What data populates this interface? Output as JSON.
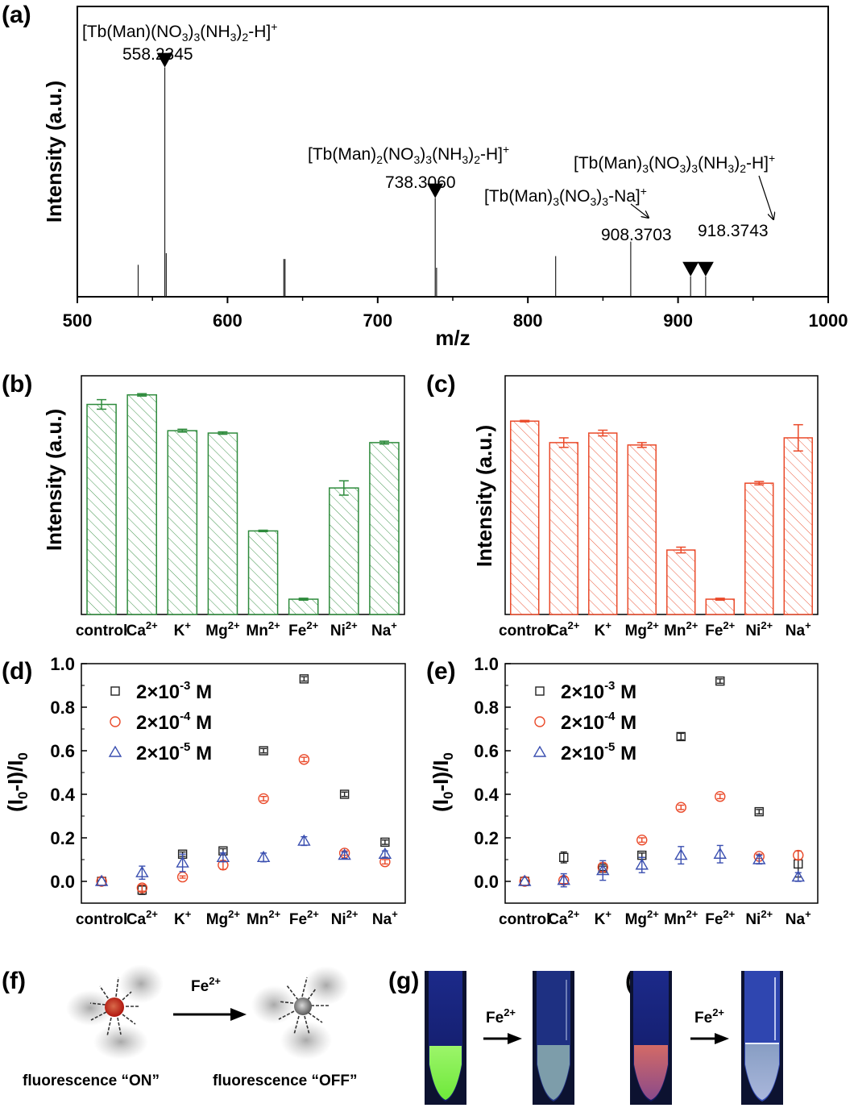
{
  "panels": {
    "a": "(a)",
    "b": "(b)",
    "c": "(c)",
    "d": "(d)",
    "e": "(e)",
    "f": "(f)",
    "g": "(g)",
    "h": "(h)"
  },
  "chart_data": [
    {
      "id": "a",
      "type": "bar",
      "subtype": "mass-spectrum",
      "title": "",
      "xlabel": "m/z",
      "ylabel": "Intensity (a.u.)",
      "xlim": [
        500,
        1000
      ],
      "xticks": [
        500,
        600,
        700,
        800,
        900,
        1000
      ],
      "ylim": [
        0,
        1
      ],
      "peaks": [
        {
          "mz": 540.5,
          "rel": 0.11
        },
        {
          "mz": 558.2345,
          "rel": 0.79
        },
        {
          "mz": 559.2,
          "rel": 0.15
        },
        {
          "mz": 637.5,
          "rel": 0.13
        },
        {
          "mz": 638.3,
          "rel": 0.13
        },
        {
          "mz": 738.306,
          "rel": 0.34
        },
        {
          "mz": 739.2,
          "rel": 0.1
        },
        {
          "mz": 818.5,
          "rel": 0.14
        },
        {
          "mz": 868.5,
          "rel": 0.19
        },
        {
          "mz": 908.3703,
          "rel": 0.07
        },
        {
          "mz": 918.3743,
          "rel": 0.07
        }
      ],
      "annotations": [
        {
          "formula": "[Tb(Man)(NO3)3(NH3)2-H]+",
          "mz_label": "558.2345",
          "mz": 558.2345
        },
        {
          "formula": "[Tb(Man)2(NO3)3(NH3)2-H]+",
          "mz_label": "738.3060",
          "mz": 738.306
        },
        {
          "formula": "[Tb(Man)3(NO3)3-Na]+",
          "mz_label": "908.3703",
          "mz": 908.3703
        },
        {
          "formula": "[Tb(Man)3(NO3)3(NH3)2-H]+",
          "mz_label": "918.3743",
          "mz": 918.3743
        }
      ]
    },
    {
      "id": "b",
      "type": "bar",
      "xlabel": "",
      "ylabel": "Intensity (a.u.)",
      "categories": [
        "control",
        "Ca2+",
        "K+",
        "Mg2+",
        "Mn2+",
        "Fe2+",
        "Ni2+",
        "Na+"
      ],
      "values": [
        0.88,
        0.92,
        0.77,
        0.76,
        0.35,
        0.064,
        0.53,
        0.72
      ],
      "errors": [
        0.02,
        0.005,
        0.006,
        0.005,
        0.003,
        0.004,
        0.03,
        0.006
      ],
      "ylim": [
        0,
        1
      ],
      "color": "#2e8b3c",
      "hatch": true
    },
    {
      "id": "c",
      "type": "bar",
      "xlabel": "",
      "ylabel": "Intensity (a.u.)",
      "categories": [
        "control",
        "Ca2+",
        "K+",
        "Mg2+",
        "Mn2+",
        "Fe2+",
        "Ni2+",
        "Na+"
      ],
      "values": [
        0.81,
        0.72,
        0.76,
        0.71,
        0.27,
        0.064,
        0.55,
        0.74
      ],
      "errors": [
        0.003,
        0.02,
        0.012,
        0.01,
        0.012,
        0.004,
        0.007,
        0.055
      ],
      "ylim": [
        0,
        1
      ],
      "color": "#ea4a2a",
      "hatch": true
    },
    {
      "id": "d",
      "type": "scatter",
      "xlabel": "",
      "ylabel": "(I0-I)/I0",
      "categories": [
        "control",
        "Ca2+",
        "K+",
        "Mg2+",
        "Mn2+",
        "Fe2+",
        "Ni2+",
        "Na+"
      ],
      "ylim": [
        -0.1,
        1.0
      ],
      "yticks": [
        0.0,
        0.2,
        0.4,
        0.6,
        0.8,
        1.0
      ],
      "legend_position": "top-left",
      "series": [
        {
          "name": "2×10-3 M",
          "marker": "square",
          "color": "#222222",
          "values": [
            0.0,
            -0.04,
            0.125,
            0.14,
            0.6,
            0.93,
            0.4,
            0.18
          ],
          "errors": [
            0.0,
            0.02,
            0.01,
            0.01,
            0.01,
            0.01,
            0.01,
            0.01
          ]
        },
        {
          "name": "2×10-4 M",
          "marker": "circle",
          "color": "#ea4a2a",
          "values": [
            0.0,
            -0.03,
            0.02,
            0.075,
            0.38,
            0.56,
            0.13,
            0.09
          ],
          "errors": [
            0.0,
            0.015,
            0.005,
            0.02,
            0.01,
            0.01,
            0.01,
            0.01
          ]
        },
        {
          "name": "2×10-5 M",
          "marker": "triangle",
          "color": "#3a4fb0",
          "values": [
            0.0,
            0.04,
            0.085,
            0.11,
            0.11,
            0.185,
            0.12,
            0.125
          ],
          "errors": [
            0.0,
            0.03,
            0.04,
            0.02,
            0.02,
            0.02,
            0.015,
            0.015
          ]
        }
      ]
    },
    {
      "id": "e",
      "type": "scatter",
      "xlabel": "",
      "ylabel": "(I0-I)/I0",
      "categories": [
        "control",
        "Ca2+",
        "K+",
        "Mg2+",
        "Mn2+",
        "Fe2+",
        "Ni2+",
        "Na+"
      ],
      "ylim": [
        -0.1,
        1.0
      ],
      "yticks": [
        0.0,
        0.2,
        0.4,
        0.6,
        0.8,
        1.0
      ],
      "legend_position": "top-left",
      "series": [
        {
          "name": "2×10-3 M",
          "marker": "square",
          "color": "#222222",
          "values": [
            0.0,
            0.11,
            0.06,
            0.12,
            0.665,
            0.92,
            0.32,
            0.08
          ],
          "errors": [
            0.0,
            0.025,
            0.01,
            0.01,
            0.015,
            0.01,
            0.01,
            0.06
          ]
        },
        {
          "name": "2×10-4 M",
          "marker": "circle",
          "color": "#ea4a2a",
          "values": [
            0.0,
            0.005,
            0.065,
            0.19,
            0.34,
            0.39,
            0.115,
            0.12
          ],
          "errors": [
            0.0,
            0.015,
            0.02,
            0.01,
            0.01,
            0.01,
            0.01,
            0.02
          ]
        },
        {
          "name": "2×10-5 M",
          "marker": "triangle",
          "color": "#3a4fb0",
          "values": [
            0.0,
            0.005,
            0.05,
            0.075,
            0.12,
            0.125,
            0.1,
            0.02
          ],
          "errors": [
            0.0,
            0.03,
            0.045,
            0.035,
            0.04,
            0.04,
            0.02,
            0.02
          ]
        }
      ]
    }
  ],
  "axis_a": {
    "xlabel": "m/z",
    "ylabel": "Intensity (a.u.)"
  },
  "figure_f": {
    "reagent": "Fe",
    "reagent_sup": "2+",
    "on_label": "fluorescence “ON”",
    "off_label": "fluorescence “OFF”"
  },
  "figure_g": {
    "reagent": "Fe",
    "reagent_sup": "2+",
    "before_color": "#7dee4a"
  },
  "figure_h": {
    "reagent": "Fe",
    "reagent_sup": "2+",
    "before_color": "#c8605a"
  }
}
